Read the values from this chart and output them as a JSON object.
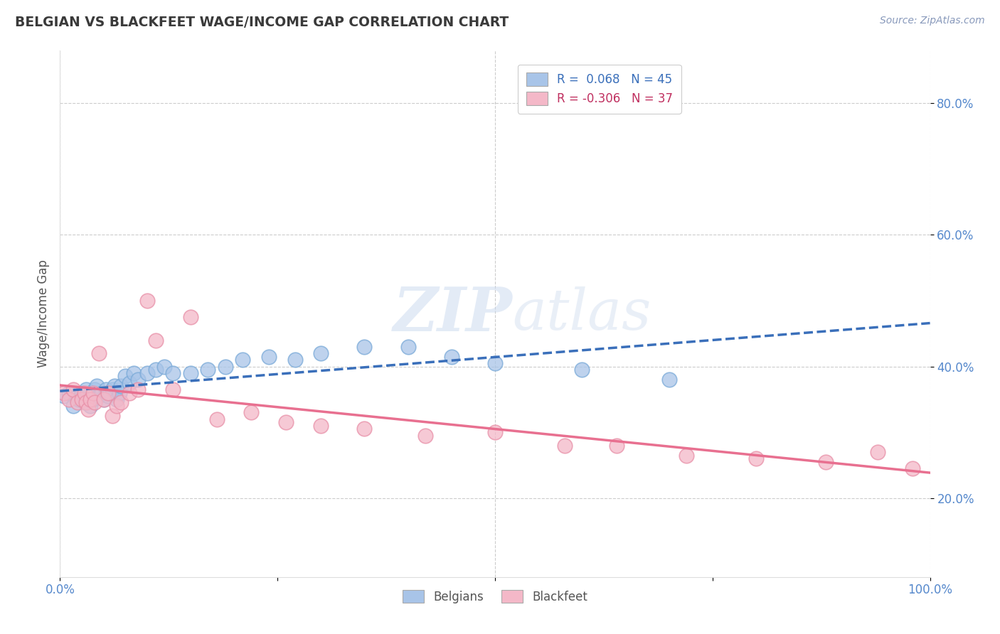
{
  "title": "BELGIAN VS BLACKFEET WAGE/INCOME GAP CORRELATION CHART",
  "source_text": "Source: ZipAtlas.com",
  "ylabel": "Wage/Income Gap",
  "xlim": [
    0.0,
    1.0
  ],
  "ylim": [
    0.08,
    0.88
  ],
  "x_ticks": [
    0.0,
    0.25,
    0.5,
    0.75,
    1.0
  ],
  "x_tick_labels": [
    "0.0%",
    "",
    "",
    "",
    "100.0%"
  ],
  "y_ticks": [
    0.2,
    0.4,
    0.6,
    0.8
  ],
  "y_tick_labels": [
    "20.0%",
    "40.0%",
    "60.0%",
    "80.0%"
  ],
  "watermark_zip": "ZIP",
  "watermark_atlas": "atlas",
  "legend_r1": "R =  0.068   N = 45",
  "legend_r2": "R = -0.306   N = 37",
  "legend_bottom1": "Belgians",
  "legend_bottom2": "Blackfeet",
  "belgians_x": [
    0.005,
    0.01,
    0.015,
    0.02,
    0.022,
    0.025,
    0.028,
    0.03,
    0.032,
    0.035,
    0.037,
    0.04,
    0.042,
    0.045,
    0.048,
    0.05,
    0.053,
    0.055,
    0.058,
    0.06,
    0.063,
    0.065,
    0.068,
    0.07,
    0.075,
    0.08,
    0.085,
    0.09,
    0.1,
    0.11,
    0.12,
    0.13,
    0.15,
    0.17,
    0.19,
    0.21,
    0.24,
    0.27,
    0.3,
    0.35,
    0.4,
    0.45,
    0.5,
    0.6,
    0.7
  ],
  "belgians_y": [
    0.355,
    0.36,
    0.34,
    0.355,
    0.35,
    0.36,
    0.345,
    0.365,
    0.35,
    0.34,
    0.35,
    0.365,
    0.37,
    0.355,
    0.36,
    0.35,
    0.365,
    0.355,
    0.36,
    0.365,
    0.37,
    0.35,
    0.36,
    0.37,
    0.385,
    0.375,
    0.39,
    0.38,
    0.39,
    0.395,
    0.4,
    0.39,
    0.39,
    0.395,
    0.4,
    0.41,
    0.415,
    0.41,
    0.42,
    0.43,
    0.43,
    0.415,
    0.405,
    0.395,
    0.38
  ],
  "blackfeet_x": [
    0.005,
    0.01,
    0.015,
    0.02,
    0.025,
    0.028,
    0.03,
    0.032,
    0.035,
    0.038,
    0.04,
    0.045,
    0.05,
    0.055,
    0.06,
    0.065,
    0.07,
    0.08,
    0.09,
    0.1,
    0.11,
    0.13,
    0.15,
    0.18,
    0.22,
    0.26,
    0.3,
    0.35,
    0.42,
    0.5,
    0.58,
    0.64,
    0.72,
    0.8,
    0.88,
    0.94,
    0.98
  ],
  "blackfeet_y": [
    0.36,
    0.35,
    0.365,
    0.345,
    0.35,
    0.36,
    0.345,
    0.335,
    0.35,
    0.36,
    0.345,
    0.42,
    0.35,
    0.36,
    0.325,
    0.34,
    0.345,
    0.36,
    0.365,
    0.5,
    0.44,
    0.365,
    0.475,
    0.32,
    0.33,
    0.315,
    0.31,
    0.305,
    0.295,
    0.3,
    0.28,
    0.28,
    0.265,
    0.26,
    0.255,
    0.27,
    0.245
  ],
  "belgian_line_color": "#3a6fba",
  "blackfeet_line_color": "#e87090",
  "belgian_scatter_color": "#a8c4e8",
  "blackfeet_scatter_color": "#f4b8c8",
  "belgian_edge_color": "#7aaad8",
  "blackfeet_edge_color": "#e890a8",
  "grid_color": "#cccccc",
  "title_color": "#3a3a3a",
  "axis_label_color": "#555555",
  "tick_label_color": "#5588cc",
  "source_color": "#888888",
  "background_color": "#ffffff",
  "watermark_color": "#c8d8ee"
}
